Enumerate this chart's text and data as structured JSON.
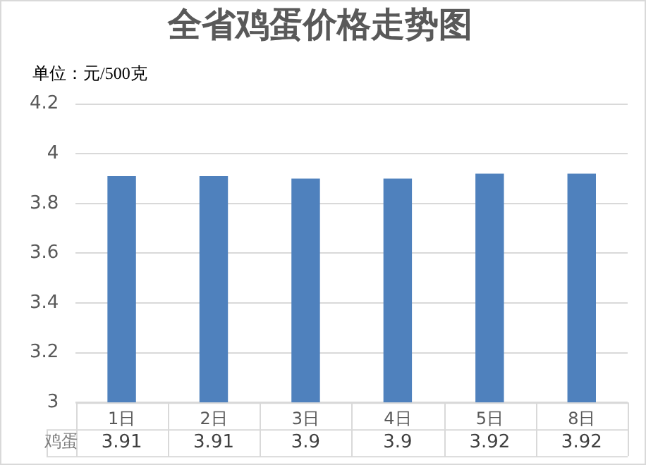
{
  "chart_data": {
    "type": "bar",
    "title": "全省鸡蛋价格走势图",
    "annotations": [
      "单位：元/500克"
    ],
    "categories": [
      "1日",
      "2日",
      "3日",
      "4日",
      "5日",
      "8日"
    ],
    "series": [
      {
        "name": "鸡蛋",
        "color": "#4f81bd",
        "values": [
          3.91,
          3.91,
          3.9,
          3.9,
          3.92,
          3.92
        ]
      }
    ],
    "ylim": [
      3,
      4.2
    ],
    "yticks": [
      3,
      3.2,
      3.4,
      3.6,
      3.8,
      4,
      4.2
    ],
    "grid": "y",
    "legend": false,
    "data_labels": true
  }
}
